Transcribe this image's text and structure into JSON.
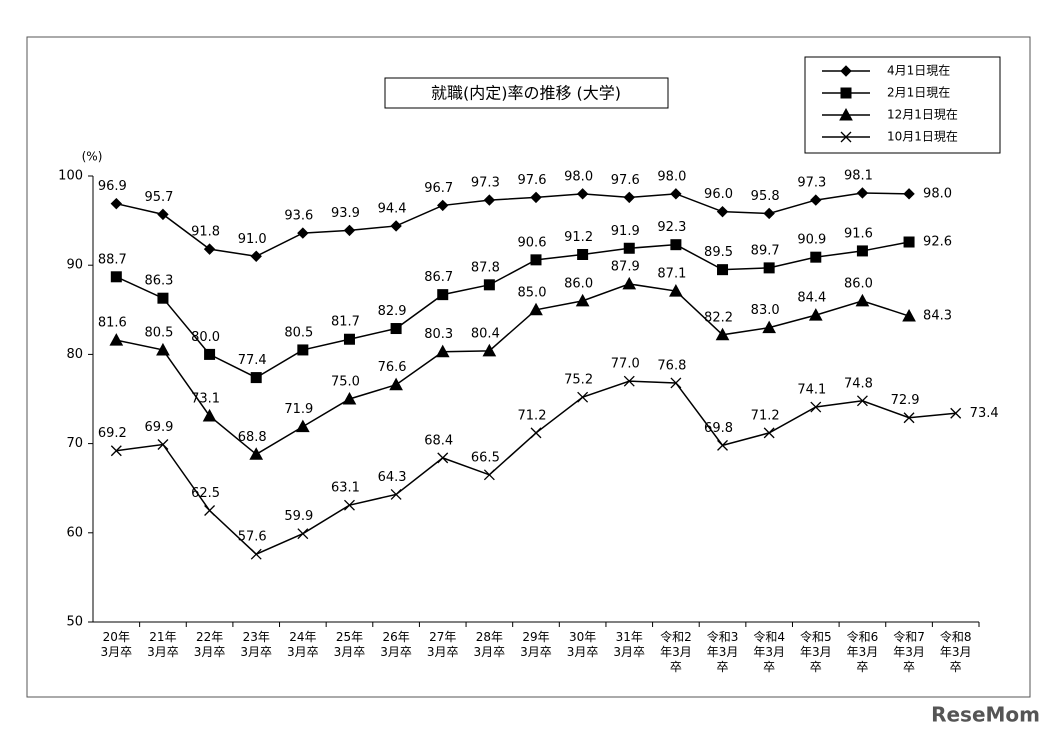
{
  "chart_data": {
    "type": "line",
    "title": "就職(内定)率の推移 (大学)",
    "y_unit": "(%)",
    "categories": [
      "20年3月卒",
      "21年3月卒",
      "22年3月卒",
      "23年3月卒",
      "24年3月卒",
      "25年3月卒",
      "26年3月卒",
      "27年3月卒",
      "28年3月卒",
      "29年3月卒",
      "30年3月卒",
      "31年3月卒",
      "令和2年3月卒",
      "令和3年3月卒",
      "令和4年3月卒",
      "令和5年3月卒",
      "令和6年3月卒",
      "令和7年3月卒",
      "令和8年3月卒"
    ],
    "ylim": [
      50,
      100
    ],
    "yticks": [
      50,
      60,
      70,
      80,
      90,
      100
    ],
    "series": [
      {
        "name": "4月1日現在",
        "color": "#000000",
        "marker": "diamond",
        "values": [
          96.9,
          95.7,
          91.8,
          91.0,
          93.6,
          93.9,
          94.4,
          96.7,
          97.3,
          97.6,
          98.0,
          97.6,
          98.0,
          96.0,
          95.8,
          97.3,
          98.1,
          98.0,
          null
        ],
        "value_labels": [
          "96.9",
          "95.7",
          "91.8",
          "91.0",
          "93.6",
          "93.9",
          "94.4",
          "96.7",
          "97.3",
          "97.6",
          "98.0",
          "97.6",
          "98.0",
          "96.0",
          "95.8",
          "97.3",
          "98.1",
          "98.0",
          null
        ]
      },
      {
        "name": "2月1日現在",
        "color": "#000000",
        "marker": "square",
        "values": [
          88.7,
          86.3,
          80.0,
          77.4,
          80.5,
          81.7,
          82.9,
          86.7,
          87.8,
          90.6,
          91.2,
          91.9,
          92.3,
          89.5,
          89.7,
          90.9,
          91.6,
          92.6,
          null
        ],
        "value_labels": [
          "88.7",
          "86.3",
          "80.0",
          "77.4",
          "80.5",
          "81.7",
          "82.9",
          "86.7",
          "87.8",
          "90.6",
          "91.2",
          "91.9",
          "92.3",
          "89.5",
          "89.7",
          "90.9",
          "91.6",
          "92.6",
          null
        ]
      },
      {
        "name": "12月1日現在",
        "color": "#000000",
        "marker": "triangle",
        "values": [
          81.6,
          80.5,
          73.1,
          68.8,
          71.9,
          75.0,
          76.6,
          80.3,
          80.4,
          85.0,
          86.0,
          87.9,
          87.1,
          82.2,
          83.0,
          84.4,
          86.0,
          84.3,
          null
        ],
        "value_labels": [
          "81.6",
          "80.5",
          "73.1",
          "68.8",
          "71.9",
          "75.0",
          "76.6",
          "80.3",
          "80.4",
          "85.0",
          "86.0",
          "87.9",
          "87.1",
          "82.2",
          "83.0",
          "84.4",
          "86.0",
          "84.3",
          null
        ]
      },
      {
        "name": "10月1日現在",
        "color": "#000000",
        "marker": "x",
        "values": [
          69.2,
          69.9,
          62.5,
          57.6,
          59.9,
          63.1,
          64.3,
          68.4,
          66.5,
          71.2,
          75.2,
          77.0,
          76.8,
          69.8,
          71.2,
          74.1,
          74.8,
          72.9,
          73.4
        ],
        "value_labels": [
          "69.2",
          "69.9",
          "62.5",
          "57.6",
          "59.9",
          "63.1",
          "64.3",
          "68.4",
          "66.5",
          "71.2",
          "75.2",
          "77.0",
          "76.8",
          "69.8",
          "71.2",
          "74.1",
          "74.8",
          "72.9",
          "73.4"
        ]
      }
    ]
  },
  "watermark": "ReseMom"
}
